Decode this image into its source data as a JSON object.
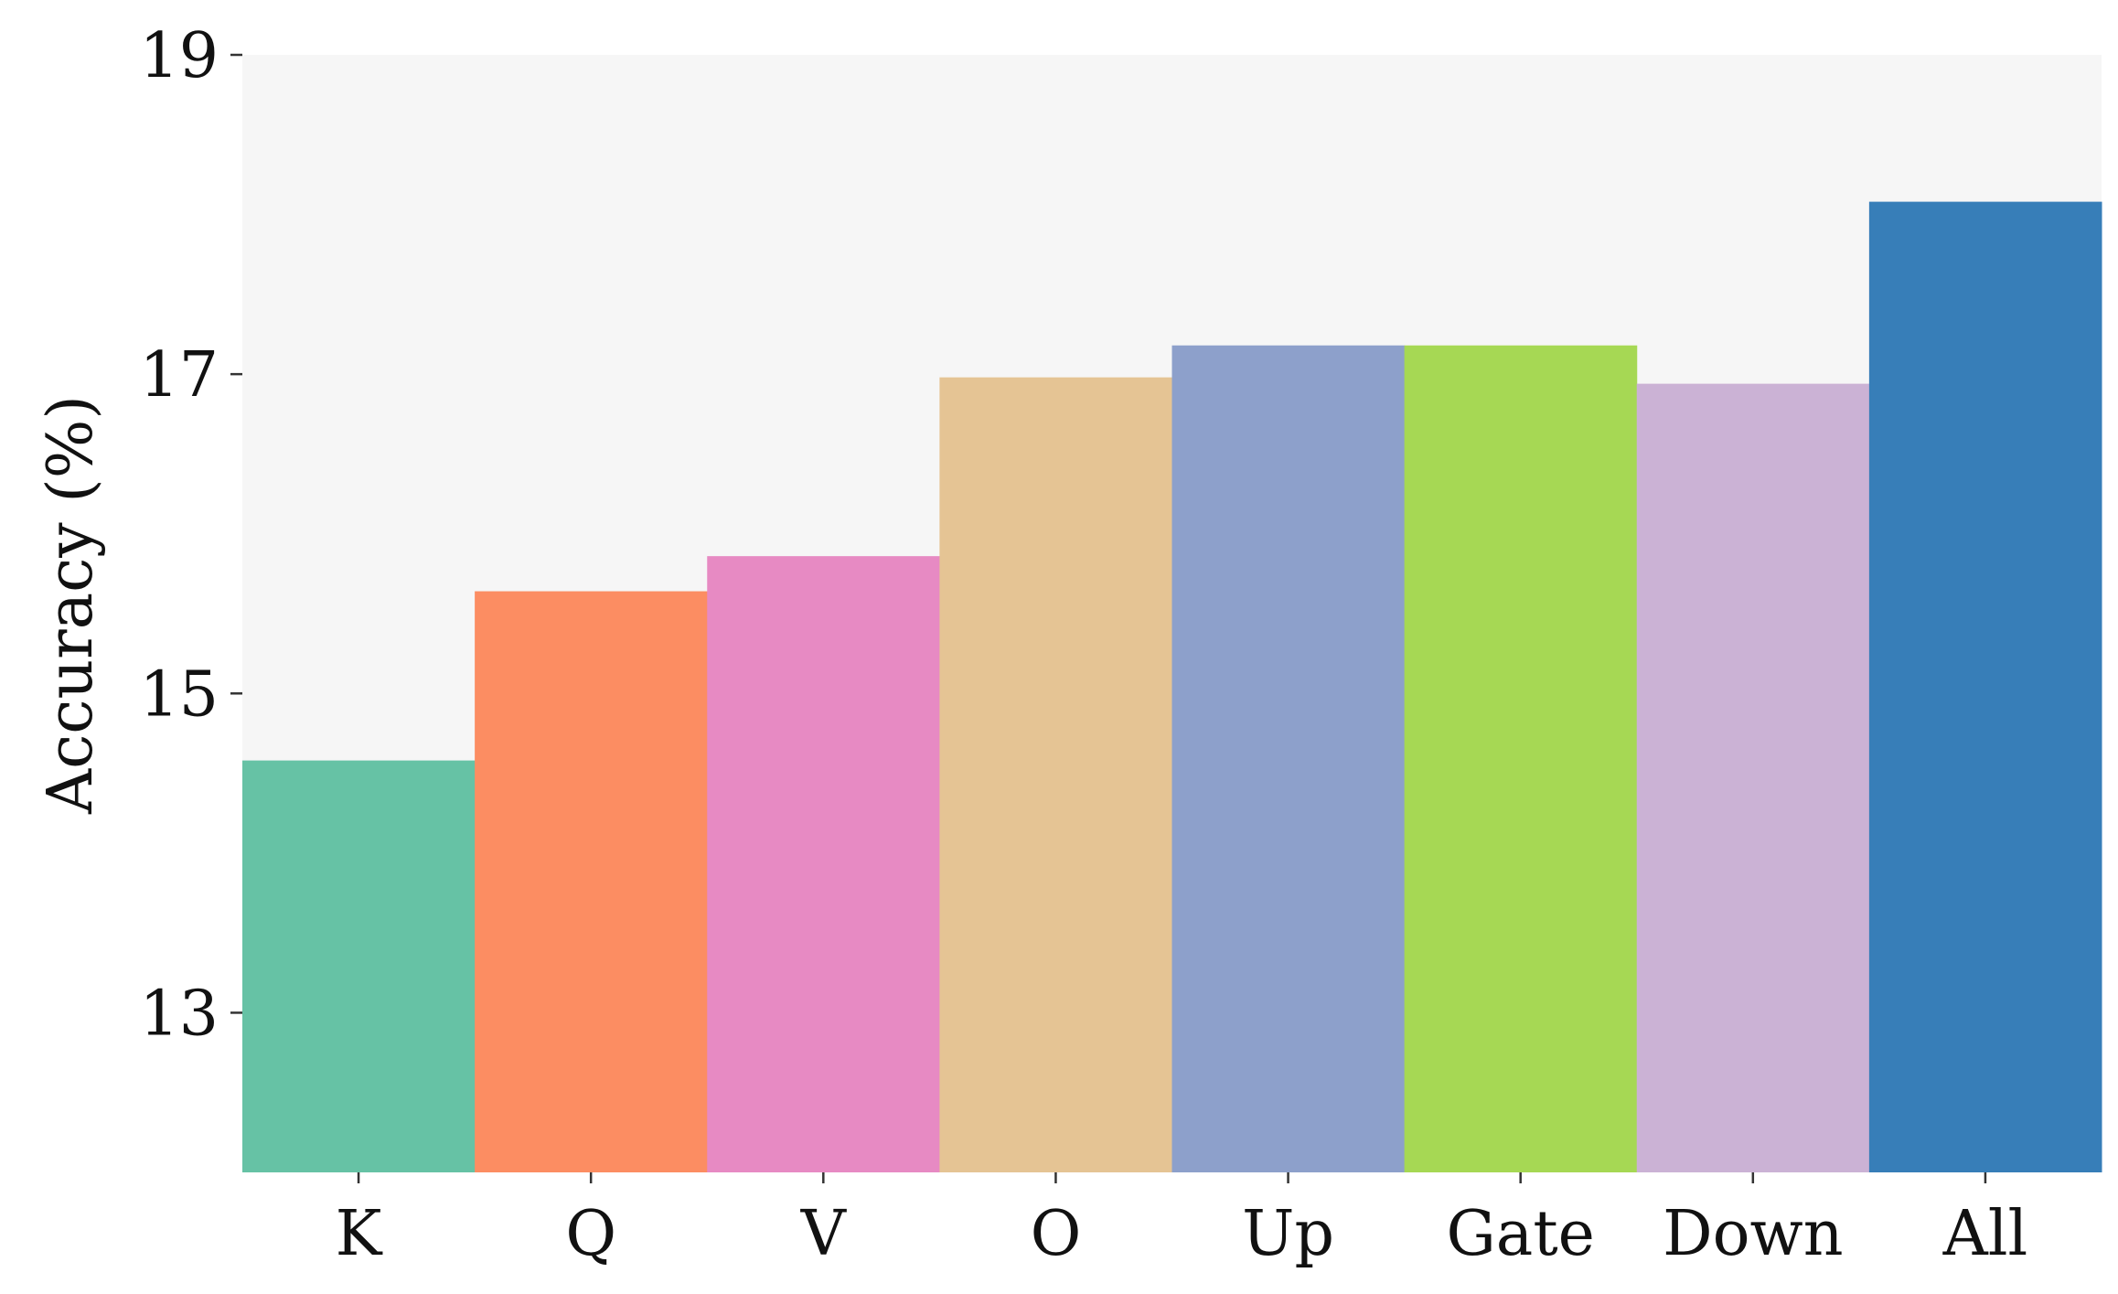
{
  "chart_data": {
    "type": "bar",
    "categories": [
      "K",
      "Q",
      "V",
      "O",
      "Up",
      "Gate",
      "Down",
      "All"
    ],
    "values": [
      14.58,
      15.64,
      15.86,
      16.98,
      17.18,
      17.18,
      16.94,
      18.08
    ],
    "colors": [
      "#66c2a5",
      "#fc8d62",
      "#e78ac3",
      "#e5c494",
      "#8da0cb",
      "#a6d854",
      "#cbb2d5",
      "#377eb8"
    ],
    "title": "",
    "xlabel": "",
    "ylabel": "Accuracy (%)",
    "ylim": [
      12,
      19
    ],
    "yticks": [
      "13",
      "15",
      "17",
      "19"
    ],
    "background_color": "#f6f6f6",
    "grid": false,
    "legend": "none"
  }
}
